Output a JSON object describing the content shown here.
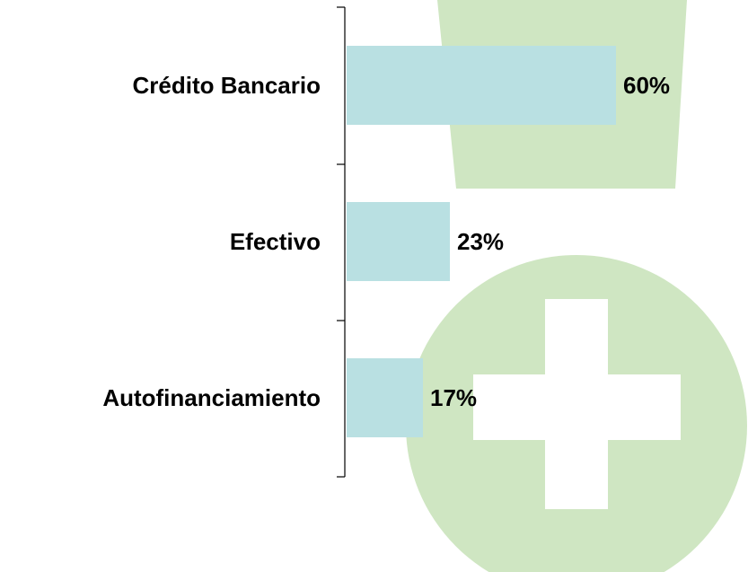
{
  "chart_data": {
    "type": "barh",
    "categories": [
      "Crédito Bancario",
      "Efectivo",
      "Autofinanciamiento"
    ],
    "values": [
      60,
      23,
      17
    ],
    "value_labels": [
      "60%",
      "23%",
      "17%"
    ],
    "color": "#b9e0e2"
  }
}
